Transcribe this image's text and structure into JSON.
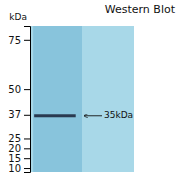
{
  "chart_data": {
    "type": "blot",
    "title": "Western Blot",
    "y_label": "kDa",
    "values": [
      36.5
    ],
    "color": "#2a3a50",
    "annotation": "35kDa",
    "ylim": [
      8,
      82
    ],
    "yticks": [
      75,
      50,
      37,
      25,
      20,
      15,
      10
    ],
    "tick_labels": "y"
  }
}
